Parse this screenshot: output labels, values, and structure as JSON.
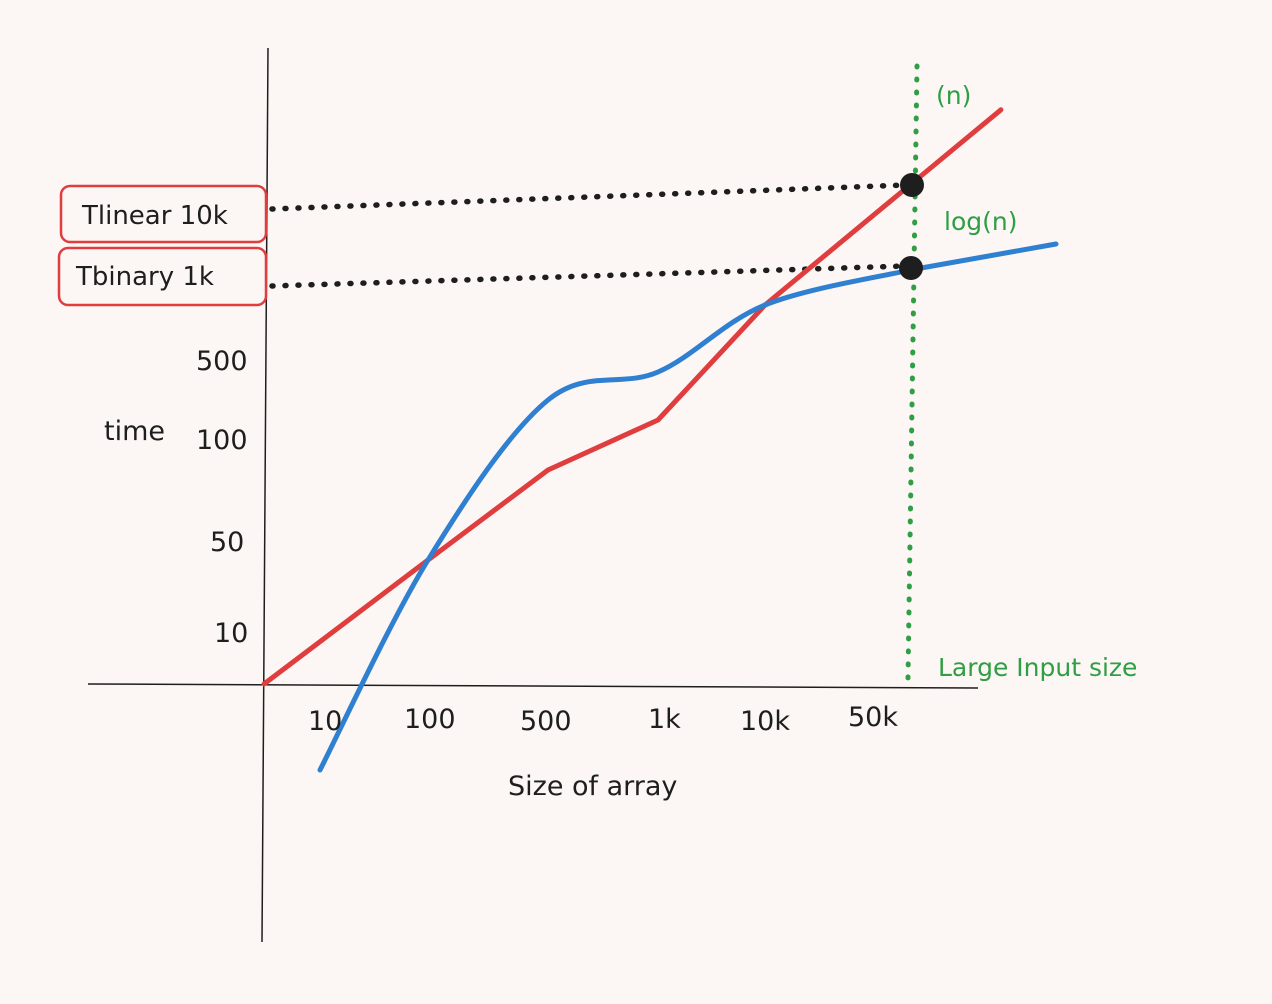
{
  "chart_data": {
    "type": "line",
    "title": "",
    "xlabel": "Size of array",
    "ylabel": "time",
    "x_ticks": [
      "10",
      "100",
      "500",
      "1k",
      "10k",
      "50k"
    ],
    "y_ticks": [
      "10",
      "50",
      "100",
      "500"
    ],
    "series": [
      {
        "name": "(n)",
        "color": "#e03e3e",
        "points": [
          [
            0,
            0
          ],
          [
            100,
            40
          ],
          [
            500,
            90
          ],
          [
            1000,
            140
          ],
          [
            10000,
            800
          ],
          [
            50000,
            10000
          ]
        ]
      },
      {
        "name": "log(n)",
        "color": "#2f80d1",
        "points": [
          [
            10,
            -20
          ],
          [
            100,
            40
          ],
          [
            500,
            180
          ],
          [
            1000,
            400
          ],
          [
            10000,
            800
          ],
          [
            50000,
            1000
          ]
        ]
      }
    ],
    "reference_line": {
      "label": "Large Input size",
      "x": "50k",
      "color": "#2f9e44",
      "style": "dotted"
    },
    "highlights": [
      {
        "label": "Tlinear 10k",
        "x": "50k",
        "y": "10k"
      },
      {
        "label": "Tbinary  1k",
        "x": "50k",
        "y": "1k"
      }
    ]
  }
}
